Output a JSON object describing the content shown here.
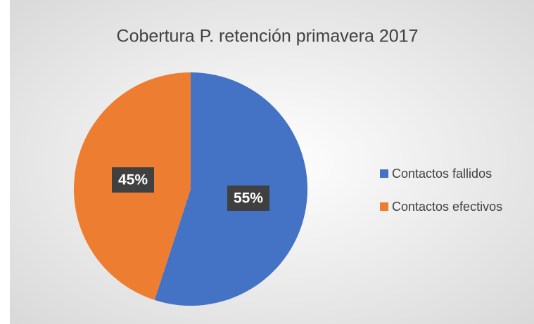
{
  "chart_data": {
    "type": "pie",
    "title": "Cobertura P. retención primavera 2017",
    "categories": [
      "Contactos fallidos",
      "Contactos efectivos"
    ],
    "values": [
      55,
      45
    ],
    "value_labels": [
      "55%",
      "45%"
    ],
    "colors": [
      "#4472c4",
      "#ed7d31"
    ],
    "legend": "right"
  }
}
